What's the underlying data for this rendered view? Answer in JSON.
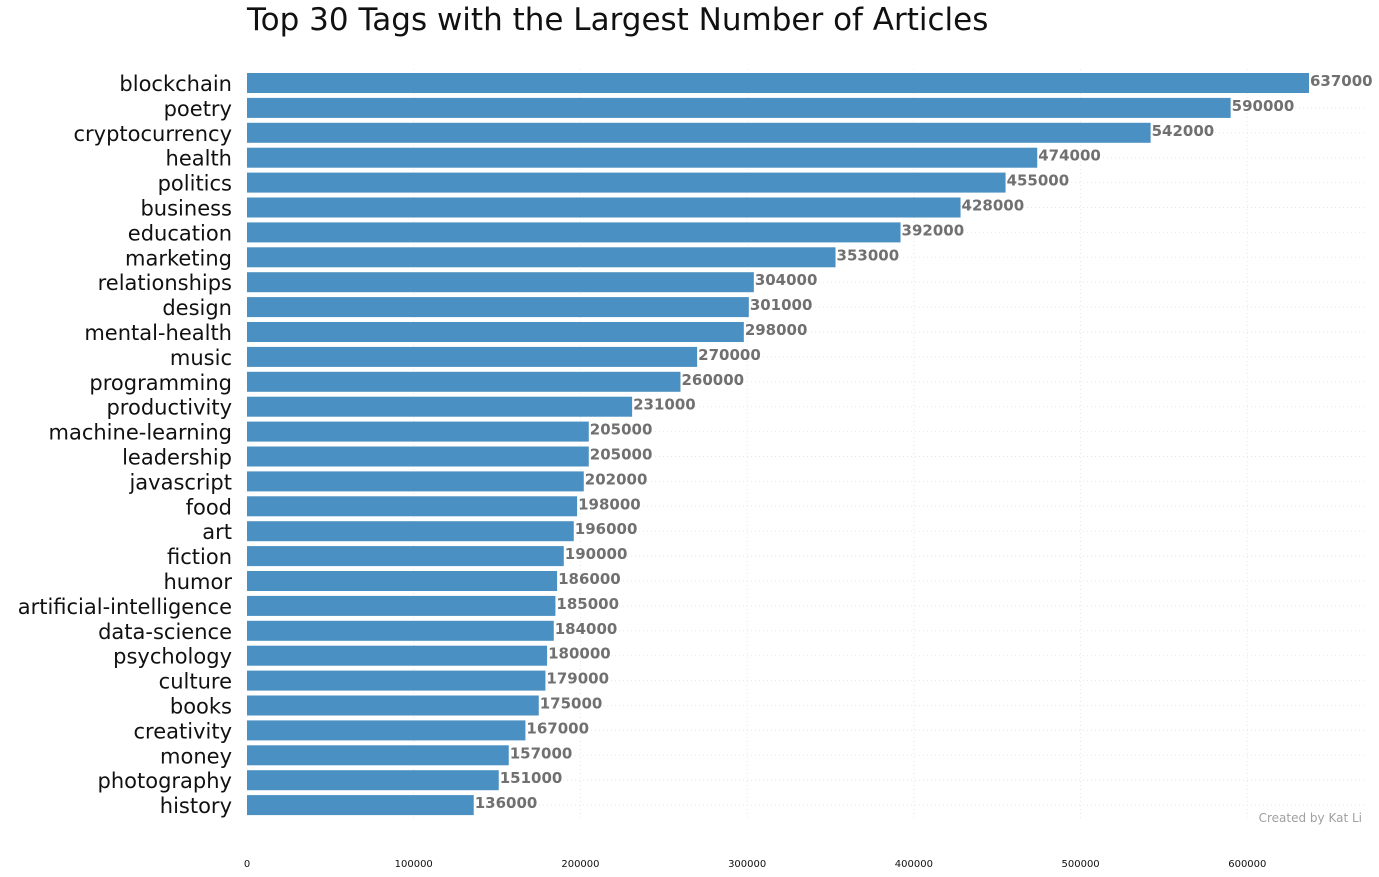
{
  "chart_data": {
    "type": "bar",
    "orientation": "horizontal",
    "title": "Top 30 Tags with the Largest Number of Articles",
    "xlabel": "",
    "ylabel": "",
    "xlim": [
      0,
      670000
    ],
    "x_ticks": [
      0,
      100000,
      200000,
      300000,
      400000,
      500000,
      600000
    ],
    "x_tick_labels": [
      "0",
      "100000",
      "200000",
      "300000",
      "400000",
      "500000",
      "600000"
    ],
    "grid": true,
    "bar_color": "#4a90c2",
    "value_label_color": "#707070",
    "categories": [
      "blockchain",
      "poetry",
      "cryptocurrency",
      "health",
      "politics",
      "business",
      "education",
      "marketing",
      "relationships",
      "design",
      "mental-health",
      "music",
      "programming",
      "productivity",
      "machine-learning",
      "leadership",
      "javascript",
      "food",
      "art",
      "fiction",
      "humor",
      "artificial-intelligence",
      "data-science",
      "psychology",
      "culture",
      "books",
      "creativity",
      "money",
      "photography",
      "history"
    ],
    "values": [
      637000,
      590000,
      542000,
      474000,
      455000,
      428000,
      392000,
      353000,
      304000,
      301000,
      298000,
      270000,
      260000,
      231000,
      205000,
      205000,
      202000,
      198000,
      196000,
      190000,
      186000,
      185000,
      184000,
      180000,
      179000,
      175000,
      167000,
      157000,
      151000,
      136000
    ],
    "value_labels": [
      "637000",
      "590000",
      "542000",
      "474000",
      "455000",
      "428000",
      "392000",
      "353000",
      "304000",
      "301000",
      "298000",
      "270000",
      "260000",
      "231000",
      "205000",
      "205000",
      "202000",
      "198000",
      "196000",
      "190000",
      "186000",
      "185000",
      "184000",
      "180000",
      "179000",
      "175000",
      "167000",
      "157000",
      "151000",
      "136000"
    ],
    "annotation": "Created by Kat Li"
  }
}
